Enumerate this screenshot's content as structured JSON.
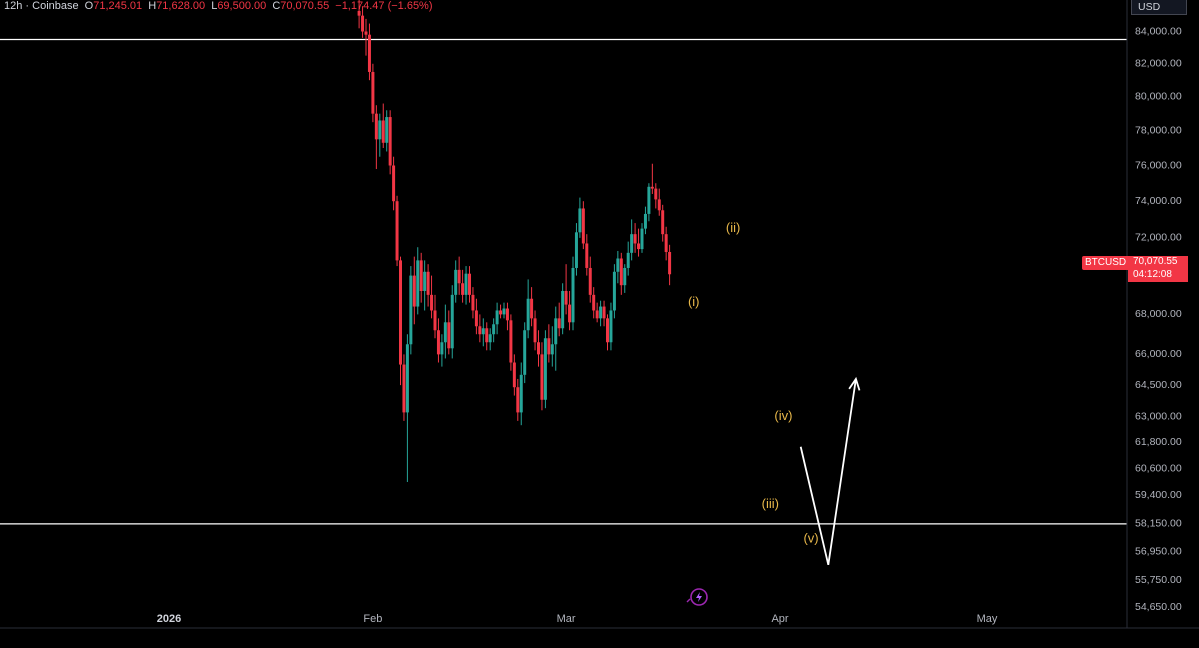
{
  "header": {
    "interval_source": "12h · Coinbase",
    "open_label": "O",
    "open": "71,245.01",
    "high_label": "H",
    "high": "71,628.00",
    "low_label": "L",
    "low": "69,500.00",
    "close_label": "C",
    "close": "70,070.55",
    "change": "−1,174.47 (−1.65%)"
  },
  "currency": "USD",
  "price_label": {
    "symbol": "BTCUSD",
    "price": "70,070.55",
    "countdown": "04:12:08",
    "color": "#f23645"
  },
  "colors": {
    "up": "#26a69a",
    "down": "#f23645",
    "wave_label": "#e8b84a",
    "drawing": "#ffffff",
    "background": "#000000"
  },
  "chart_data": {
    "type": "candlestick",
    "y_scale": "log",
    "ylim": [
      53800,
      86000
    ],
    "y_ticks": [
      "84,000.00",
      "82,000.00",
      "80,000.00",
      "78,000.00",
      "76,000.00",
      "74,000.00",
      "72,000.00",
      "68,000.00",
      "66,000.00",
      "64,500.00",
      "63,000.00",
      "61,800.00",
      "60,600.00",
      "59,400.00",
      "58,150.00",
      "56,950.00",
      "55,750.00",
      "54,650.00"
    ],
    "y_tick_values": [
      84000,
      82000,
      80000,
      78000,
      76000,
      74000,
      72000,
      68000,
      66000,
      64500,
      63000,
      61800,
      60600,
      59400,
      58150,
      56950,
      55750,
      54650
    ],
    "x_ticks": [
      {
        "label": "2026",
        "day": 0,
        "bold": true
      },
      {
        "label": "Feb",
        "day": 31
      },
      {
        "label": "Mar",
        "day": 59
      },
      {
        "label": "Apr",
        "day": 90
      },
      {
        "label": "May",
        "day": 120
      }
    ],
    "horizontal_lines": [
      83500,
      58150
    ],
    "wave_labels": [
      {
        "text": "(i)",
        "day": 77.5,
        "price": 68600
      },
      {
        "text": "(ii)",
        "day": 83.2,
        "price": 72500
      },
      {
        "text": "(iii)",
        "day": 88.6,
        "price": 59000
      },
      {
        "text": "(iv)",
        "day": 90.5,
        "price": 63000
      },
      {
        "text": "(v)",
        "day": 94.5,
        "price": 57500
      }
    ],
    "projection_path": [
      {
        "day": 93.0,
        "price": 61600
      },
      {
        "day": 97.0,
        "price": 56400
      },
      {
        "day": 101.0,
        "price": 64800
      }
    ],
    "candles": [
      {
        "day": 29.0,
        "o": 85300,
        "h": 86000,
        "l": 84200,
        "c": 85000
      },
      {
        "day": 29.5,
        "o": 85000,
        "h": 85600,
        "l": 83600,
        "c": 84000
      },
      {
        "day": 30.0,
        "o": 84000,
        "h": 84800,
        "l": 82500,
        "c": 83800
      },
      {
        "day": 30.5,
        "o": 83800,
        "h": 84500,
        "l": 81000,
        "c": 81500
      },
      {
        "day": 31.0,
        "o": 81500,
        "h": 82000,
        "l": 78500,
        "c": 79000
      },
      {
        "day": 31.5,
        "o": 79000,
        "h": 79500,
        "l": 75800,
        "c": 77500
      },
      {
        "day": 32.0,
        "o": 77500,
        "h": 79000,
        "l": 76500,
        "c": 78600
      },
      {
        "day": 32.5,
        "o": 78600,
        "h": 79600,
        "l": 77000,
        "c": 77300
      },
      {
        "day": 33.0,
        "o": 77300,
        "h": 79200,
        "l": 76800,
        "c": 78800
      },
      {
        "day": 33.5,
        "o": 78800,
        "h": 79200,
        "l": 75500,
        "c": 76000
      },
      {
        "day": 34.0,
        "o": 76000,
        "h": 76500,
        "l": 73500,
        "c": 74000
      },
      {
        "day": 34.5,
        "o": 74000,
        "h": 74300,
        "l": 70500,
        "c": 70800
      },
      {
        "day": 35.0,
        "o": 70800,
        "h": 71000,
        "l": 64500,
        "c": 65500
      },
      {
        "day": 35.5,
        "o": 65500,
        "h": 66000,
        "l": 62800,
        "c": 63200
      },
      {
        "day": 36.0,
        "o": 63200,
        "h": 67000,
        "l": 60000,
        "c": 66500
      },
      {
        "day": 36.5,
        "o": 66500,
        "h": 70500,
        "l": 66000,
        "c": 70000
      },
      {
        "day": 37.0,
        "o": 70000,
        "h": 71000,
        "l": 67500,
        "c": 68400
      },
      {
        "day": 37.5,
        "o": 68400,
        "h": 71500,
        "l": 68000,
        "c": 70800
      },
      {
        "day": 38.0,
        "o": 70800,
        "h": 71200,
        "l": 68600,
        "c": 69200
      },
      {
        "day": 38.5,
        "o": 69200,
        "h": 70800,
        "l": 68200,
        "c": 70200
      },
      {
        "day": 39.0,
        "o": 70200,
        "h": 70600,
        "l": 68400,
        "c": 69000
      },
      {
        "day": 39.5,
        "o": 69000,
        "h": 70000,
        "l": 67800,
        "c": 68200
      },
      {
        "day": 40.0,
        "o": 68200,
        "h": 69000,
        "l": 66800,
        "c": 67200
      },
      {
        "day": 40.5,
        "o": 67200,
        "h": 67800,
        "l": 65600,
        "c": 66000
      },
      {
        "day": 41.0,
        "o": 66000,
        "h": 67000,
        "l": 65400,
        "c": 66600
      },
      {
        "day": 41.5,
        "o": 66600,
        "h": 68500,
        "l": 65800,
        "c": 67600
      },
      {
        "day": 42.0,
        "o": 67600,
        "h": 68200,
        "l": 66000,
        "c": 66300
      },
      {
        "day": 42.5,
        "o": 66300,
        "h": 69500,
        "l": 65800,
        "c": 69000
      },
      {
        "day": 43.0,
        "o": 69000,
        "h": 70800,
        "l": 68600,
        "c": 70300
      },
      {
        "day": 43.5,
        "o": 70300,
        "h": 71000,
        "l": 69000,
        "c": 69600
      },
      {
        "day": 44.0,
        "o": 69600,
        "h": 70300,
        "l": 68600,
        "c": 69000
      },
      {
        "day": 44.5,
        "o": 69000,
        "h": 70500,
        "l": 68500,
        "c": 70100
      },
      {
        "day": 45.0,
        "o": 70100,
        "h": 70500,
        "l": 68600,
        "c": 69000
      },
      {
        "day": 45.5,
        "o": 69000,
        "h": 69400,
        "l": 67800,
        "c": 68200
      },
      {
        "day": 46.0,
        "o": 68200,
        "h": 68800,
        "l": 67000,
        "c": 67400
      },
      {
        "day": 46.5,
        "o": 67400,
        "h": 68000,
        "l": 66600,
        "c": 67000
      },
      {
        "day": 47.0,
        "o": 67000,
        "h": 67800,
        "l": 66400,
        "c": 67300
      },
      {
        "day": 47.5,
        "o": 67300,
        "h": 67600,
        "l": 66200,
        "c": 66600
      },
      {
        "day": 48.0,
        "o": 66600,
        "h": 67300,
        "l": 66200,
        "c": 67000
      },
      {
        "day": 48.5,
        "o": 67000,
        "h": 67800,
        "l": 66600,
        "c": 67500
      },
      {
        "day": 49.0,
        "o": 67500,
        "h": 68600,
        "l": 67000,
        "c": 68200
      },
      {
        "day": 49.5,
        "o": 68200,
        "h": 68500,
        "l": 67800,
        "c": 68000
      },
      {
        "day": 50.0,
        "o": 68000,
        "h": 68600,
        "l": 67800,
        "c": 68300
      },
      {
        "day": 50.5,
        "o": 68300,
        "h": 68600,
        "l": 67200,
        "c": 67700
      },
      {
        "day": 51.0,
        "o": 67700,
        "h": 68000,
        "l": 65200,
        "c": 65600
      },
      {
        "day": 51.5,
        "o": 65600,
        "h": 66000,
        "l": 64000,
        "c": 64400
      },
      {
        "day": 52.0,
        "o": 64400,
        "h": 64800,
        "l": 62800,
        "c": 63200
      },
      {
        "day": 52.5,
        "o": 63200,
        "h": 65600,
        "l": 62600,
        "c": 65000
      },
      {
        "day": 53.0,
        "o": 65000,
        "h": 67600,
        "l": 64600,
        "c": 67200
      },
      {
        "day": 53.5,
        "o": 67200,
        "h": 69800,
        "l": 66800,
        "c": 68800
      },
      {
        "day": 54.0,
        "o": 68800,
        "h": 69400,
        "l": 67400,
        "c": 67800
      },
      {
        "day": 54.5,
        "o": 67800,
        "h": 68200,
        "l": 66200,
        "c": 66600
      },
      {
        "day": 55.0,
        "o": 66600,
        "h": 67200,
        "l": 65400,
        "c": 66000
      },
      {
        "day": 55.5,
        "o": 66000,
        "h": 66600,
        "l": 63300,
        "c": 63800
      },
      {
        "day": 56.0,
        "o": 63800,
        "h": 67200,
        "l": 63400,
        "c": 66800
      },
      {
        "day": 56.5,
        "o": 66800,
        "h": 67500,
        "l": 65600,
        "c": 66000
      },
      {
        "day": 57.0,
        "o": 66000,
        "h": 67400,
        "l": 65400,
        "c": 66500
      },
      {
        "day": 57.5,
        "o": 66500,
        "h": 68400,
        "l": 65200,
        "c": 67800
      },
      {
        "day": 58.0,
        "o": 67800,
        "h": 68600,
        "l": 66900,
        "c": 67300
      },
      {
        "day": 58.5,
        "o": 67300,
        "h": 69600,
        "l": 67000,
        "c": 69200
      },
      {
        "day": 59.0,
        "o": 69200,
        "h": 70600,
        "l": 68000,
        "c": 68500
      },
      {
        "day": 59.5,
        "o": 68500,
        "h": 69200,
        "l": 67200,
        "c": 67600
      },
      {
        "day": 60.0,
        "o": 67600,
        "h": 71000,
        "l": 67200,
        "c": 70400
      },
      {
        "day": 60.5,
        "o": 70400,
        "h": 72800,
        "l": 70000,
        "c": 72300
      },
      {
        "day": 61.0,
        "o": 72300,
        "h": 74200,
        "l": 72000,
        "c": 73600
      },
      {
        "day": 61.5,
        "o": 73600,
        "h": 74000,
        "l": 71400,
        "c": 71700
      },
      {
        "day": 62.0,
        "o": 71700,
        "h": 72200,
        "l": 70000,
        "c": 70400
      },
      {
        "day": 62.5,
        "o": 70400,
        "h": 71000,
        "l": 68600,
        "c": 69000
      },
      {
        "day": 63.0,
        "o": 69000,
        "h": 69400,
        "l": 67800,
        "c": 68200
      },
      {
        "day": 63.5,
        "o": 68200,
        "h": 68600,
        "l": 67600,
        "c": 67800
      },
      {
        "day": 64.0,
        "o": 67800,
        "h": 68700,
        "l": 67400,
        "c": 68400
      },
      {
        "day": 64.5,
        "o": 68400,
        "h": 68700,
        "l": 67400,
        "c": 67800
      },
      {
        "day": 65.0,
        "o": 67800,
        "h": 68000,
        "l": 66200,
        "c": 66600
      },
      {
        "day": 65.5,
        "o": 66600,
        "h": 68600,
        "l": 66200,
        "c": 68200
      },
      {
        "day": 66.0,
        "o": 68200,
        "h": 70600,
        "l": 67800,
        "c": 70200
      },
      {
        "day": 66.5,
        "o": 70200,
        "h": 71300,
        "l": 69600,
        "c": 70900
      },
      {
        "day": 67.0,
        "o": 70900,
        "h": 71200,
        "l": 69000,
        "c": 69500
      },
      {
        "day": 67.5,
        "o": 69500,
        "h": 70600,
        "l": 69100,
        "c": 70400
      },
      {
        "day": 68.0,
        "o": 70400,
        "h": 71800,
        "l": 70000,
        "c": 71200
      },
      {
        "day": 68.5,
        "o": 71200,
        "h": 73000,
        "l": 70800,
        "c": 72200
      },
      {
        "day": 69.0,
        "o": 72200,
        "h": 72800,
        "l": 71200,
        "c": 71700
      },
      {
        "day": 69.5,
        "o": 71700,
        "h": 72500,
        "l": 71000,
        "c": 71400
      },
      {
        "day": 70.0,
        "o": 71400,
        "h": 72800,
        "l": 71200,
        "c": 72500
      },
      {
        "day": 70.5,
        "o": 72500,
        "h": 73700,
        "l": 72200,
        "c": 73300
      },
      {
        "day": 71.0,
        "o": 73300,
        "h": 75000,
        "l": 72900,
        "c": 74800
      },
      {
        "day": 71.5,
        "o": 74800,
        "h": 76100,
        "l": 74400,
        "c": 74700
      },
      {
        "day": 72.0,
        "o": 74700,
        "h": 75000,
        "l": 73600,
        "c": 74100
      },
      {
        "day": 72.5,
        "o": 74100,
        "h": 74700,
        "l": 73200,
        "c": 73500
      },
      {
        "day": 73.0,
        "o": 73500,
        "h": 73800,
        "l": 71800,
        "c": 72200
      },
      {
        "day": 73.5,
        "o": 72200,
        "h": 72600,
        "l": 70800,
        "c": 71245
      },
      {
        "day": 74.0,
        "o": 71245,
        "h": 71628,
        "l": 69500,
        "c": 70070
      }
    ]
  }
}
